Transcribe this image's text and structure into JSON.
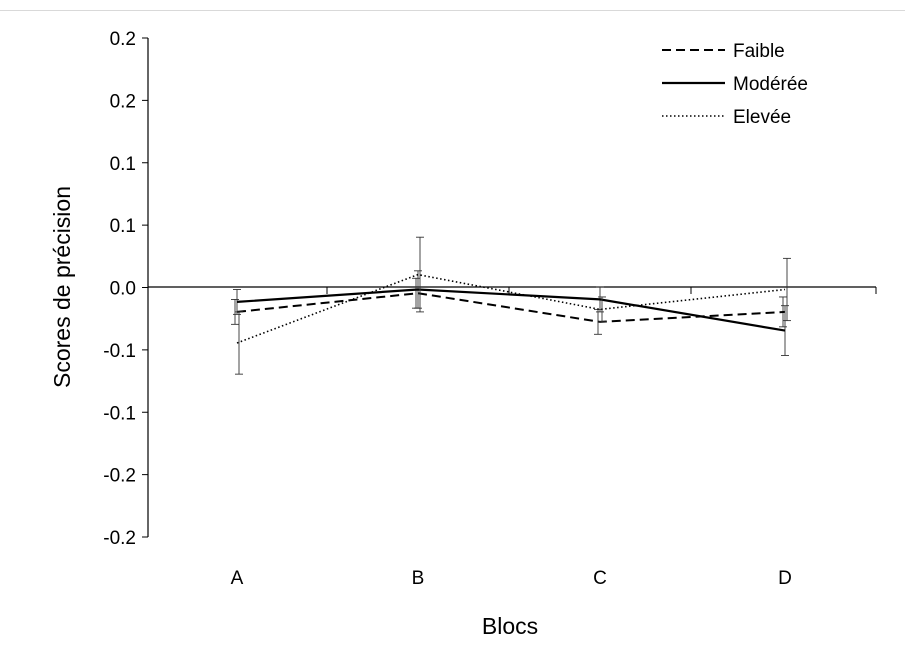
{
  "chart_data": {
    "type": "line",
    "title": "",
    "xlabel": "Blocs",
    "ylabel": "Scores de précision",
    "categories": [
      "A",
      "B",
      "C",
      "D"
    ],
    "y_tick_labels": [
      "0.2",
      "0.2",
      "0.1",
      "0.1",
      "0.0",
      "-0.1",
      "-0.1",
      "-0.2",
      "-0.2"
    ],
    "ylim": [
      -0.2,
      0.2
    ],
    "legend_position": "top-right",
    "grid": false,
    "error_bars": true,
    "series": [
      {
        "name": "Faible",
        "style": "dashed",
        "values": [
          -0.02,
          -0.005,
          -0.028,
          -0.02
        ],
        "errors": [
          0.01,
          0.012,
          0.01,
          0.012
        ]
      },
      {
        "name": "Modérée",
        "style": "solid",
        "values": [
          -0.012,
          -0.002,
          -0.01,
          -0.035
        ],
        "errors": [
          0.01,
          0.015,
          0.01,
          0.02
        ]
      },
      {
        "name": "Elevée",
        "style": "dotted",
        "values": [
          -0.045,
          0.01,
          -0.018,
          -0.002
        ],
        "errors": [
          0.025,
          0.03,
          0.01,
          0.025
        ]
      }
    ]
  }
}
